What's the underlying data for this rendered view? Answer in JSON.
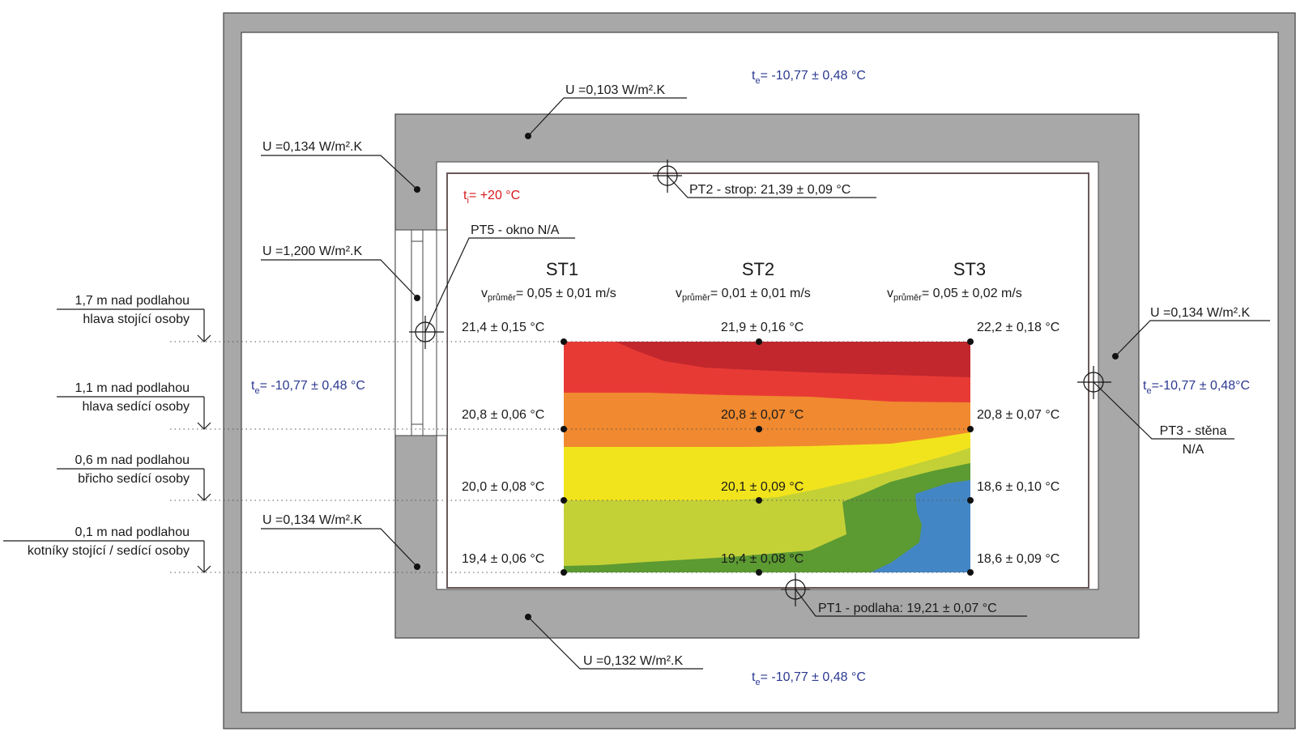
{
  "colors": {
    "wall": "#a8a8a8",
    "exterior_text": "#2b3990",
    "interior_text": "#d7191c",
    "band_hot_dark": "#c1272d",
    "band_hot": "#e83a35",
    "band_orange": "#f0892f",
    "band_yellow": "#f2e41c",
    "band_yellowgreen": "#c3d137",
    "band_green": "#5c9a32",
    "band_blue": "#4386c5"
  },
  "exterior": {
    "t_symbol": "t",
    "t_sub": "e",
    "t_value": "= -10,77 ± 0,48 °C",
    "t_value_right": "=-10,77 ± 0,48°C"
  },
  "interior": {
    "t_symbol": "t",
    "t_sub": "i",
    "t_value": "= +20 °C"
  },
  "u_values": {
    "top": "U =0,103 W/m².K",
    "left_upper": "U =0,134 W/m².K",
    "window": "U =1,200 W/m².K",
    "left_lower": "U =0,134 W/m².K",
    "right": "U =0,134 W/m².K",
    "bottom": "U =0,132 W/m².K"
  },
  "probes": {
    "pt1": "PT1 - podlaha: 19,21 ± 0,07 °C",
    "pt2": "PT2 - strop: 21,39 ± 0,09 °C",
    "pt3_line1": "PT3 - stěna",
    "pt3_line2": "N/A",
    "pt5": "PT5 - okno N/A"
  },
  "heights": [
    {
      "line1": "1,7 m nad podlahou",
      "line2": "hlava stojící osoby"
    },
    {
      "line1": "1,1 m nad podlahou",
      "line2": "hlava sedící osoby"
    },
    {
      "line1": "0,6 m nad podlahou",
      "line2": "břicho sedící osoby"
    },
    {
      "line1": "0,1 m nad podlahou",
      "line2": "kotníky stojící / sedící osoby"
    }
  ],
  "stands": [
    {
      "name": "ST1",
      "v_symbol": "v",
      "v_sub": "průměr",
      "v_value": "= 0,05 ± 0,01 m/s",
      "temps": [
        "21,4 ± 0,15 °C",
        "20,8 ± 0,06 °C",
        "20,0 ± 0,08 °C",
        "19,4 ± 0,06 °C"
      ]
    },
    {
      "name": "ST2",
      "v_symbol": "v",
      "v_sub": "průměr",
      "v_value": "= 0,01 ± 0,01 m/s",
      "temps": [
        "21,9 ± 0,16 °C",
        "20,8 ± 0,07 °C",
        "20,1 ± 0,09 °C",
        "19,4 ± 0,08 °C"
      ]
    },
    {
      "name": "ST3",
      "v_symbol": "v",
      "v_sub": "průměr",
      "v_value": "= 0,05 ± 0,02 m/s",
      "temps": [
        "22,2 ± 0,18 °C",
        "20,8 ± 0,07 °C",
        "18,6 ± 0,10 °C",
        "18,6 ± 0,09 °C"
      ]
    }
  ]
}
